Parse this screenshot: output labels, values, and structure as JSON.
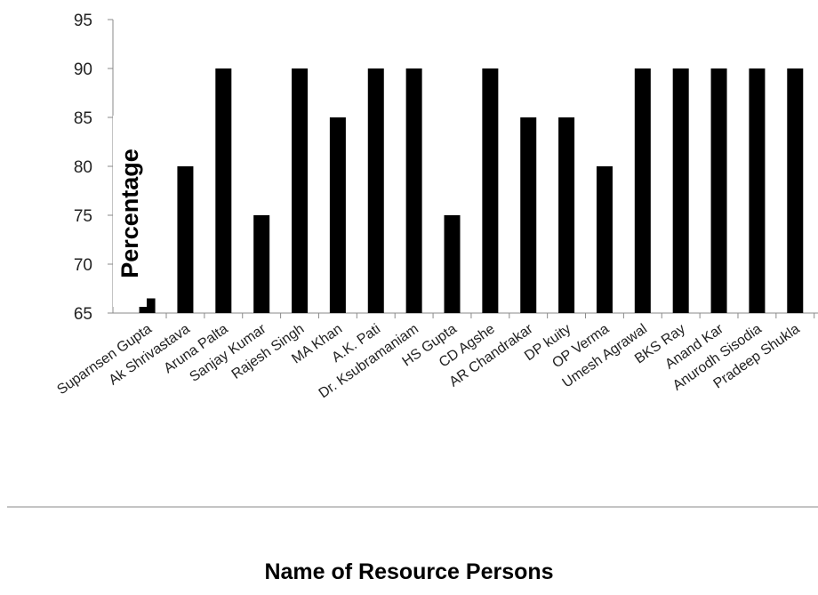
{
  "chart_data": {
    "type": "bar",
    "xlabel": "Name of Resource Persons",
    "ylabel": "Percentage",
    "ylim": [
      65,
      95
    ],
    "yticks": [
      65,
      70,
      75,
      80,
      85,
      90,
      95
    ],
    "grid": false,
    "legend": "none",
    "bar_color": "#000000",
    "categories": [
      "Suparnsen Gupta",
      "Ak Shrivastava",
      "Aruna Palta",
      "Sanjay Kumar",
      "Rajesh Singh",
      "MA Khan",
      "A.K. Pati",
      "Dr. Ksubramaniam",
      "HS Gupta",
      "CD Agshe",
      "AR Chandrakar",
      "DP kuity",
      "OP Verma",
      "Umesh Agrawal",
      "BKS Ray",
      "Anand Kar",
      "Anurodh Sisodia",
      "Pradeep Shukla"
    ],
    "values": [
      66.5,
      80,
      90,
      75,
      90,
      85,
      90,
      90,
      75,
      90,
      85,
      85,
      80,
      90,
      90,
      90,
      90,
      90
    ]
  }
}
